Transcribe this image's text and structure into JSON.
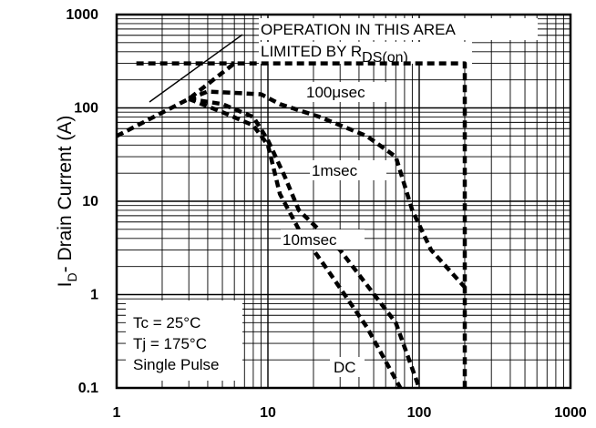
{
  "chart_data": {
    "type": "line",
    "title": "",
    "xlabel": "",
    "ylabel_main": "I",
    "ylabel_sub": "D",
    "ylabel_rest": "- Drain Current (A)",
    "x_scale": "log",
    "y_scale": "log",
    "xlim": [
      1,
      1000
    ],
    "ylim": [
      0.1,
      1000
    ],
    "x_ticks": [
      "1",
      "10",
      "100",
      "1000"
    ],
    "y_ticks": [
      "0.1",
      "1",
      "10",
      "100",
      "1000"
    ],
    "grid": true,
    "annotations": {
      "area_line1": "OPERATION IN THIS AREA",
      "area_line2_a": "LIMITED BY R",
      "area_line2_sub": "DS(on)"
    },
    "conditions": [
      "Tc = 25°C",
      "Tj = 175°C",
      "Single Pulse"
    ],
    "curve_labels": {
      "us100": "100μsec",
      "ms1": "1msec",
      "ms10": "10msec",
      "dc": "DC"
    },
    "series": [
      {
        "name": "100μsec",
        "x": [
          1,
          3,
          6,
          200,
          200
        ],
        "y": [
          50,
          125,
          300,
          300,
          0.1
        ]
      },
      {
        "name": "1msec",
        "x": [
          3,
          4,
          9,
          12,
          22,
          45,
          70,
          90,
          120,
          200
        ],
        "y": [
          125,
          150,
          140,
          110,
          80,
          50,
          30,
          8,
          3,
          1.2
        ]
      },
      {
        "name": "10msec",
        "x": [
          3,
          5,
          8,
          10,
          13,
          16,
          30,
          70,
          100
        ],
        "y": [
          125,
          110,
          80,
          45,
          18,
          8,
          3,
          0.5,
          0.1
        ]
      },
      {
        "name": "DC",
        "x": [
          3,
          5,
          8,
          10,
          12,
          16,
          25,
          45,
          75
        ],
        "y": [
          125,
          90,
          65,
          40,
          12,
          5,
          1.8,
          0.45,
          0.1
        ]
      }
    ]
  }
}
